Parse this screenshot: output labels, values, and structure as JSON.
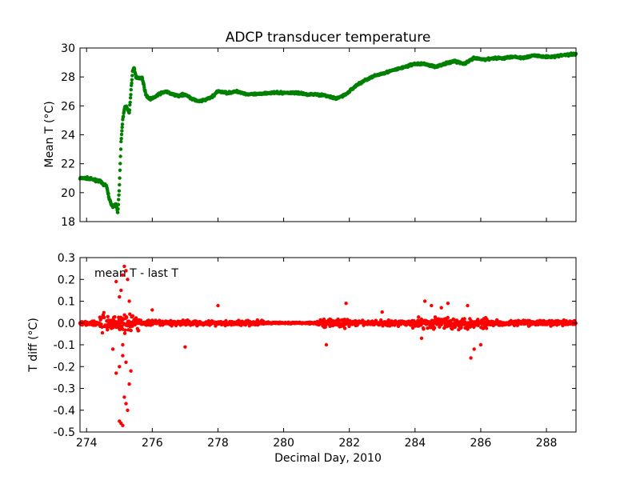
{
  "chart_data": [
    {
      "type": "scatter",
      "title": "ADCP transducer temperature",
      "xlabel": "",
      "ylabel": "Mean T (°C)",
      "xlim": [
        273.8,
        288.9
      ],
      "ylim": [
        18,
        30
      ],
      "xticks": [
        274,
        276,
        278,
        280,
        282,
        284,
        286,
        288
      ],
      "yticks": [
        18,
        20,
        22,
        24,
        26,
        28,
        30
      ],
      "grid": false,
      "legend": "none",
      "series": [
        {
          "color": "#008000",
          "x": [
            273.8,
            274.0,
            274.2,
            274.4,
            274.5,
            274.6,
            274.7,
            274.8,
            274.9,
            274.95,
            275.0,
            275.05,
            275.1,
            275.15,
            275.2,
            275.3,
            275.4,
            275.45,
            275.5,
            275.7,
            275.8,
            275.9,
            276.0,
            276.2,
            276.4,
            276.6,
            276.8,
            277.0,
            277.2,
            277.4,
            277.6,
            277.8,
            278.0,
            278.3,
            278.6,
            278.9,
            279.2,
            279.5,
            279.8,
            280.1,
            280.4,
            280.7,
            281.0,
            281.3,
            281.6,
            281.9,
            282.2,
            282.5,
            282.8,
            283.1,
            283.4,
            283.7,
            284.0,
            284.3,
            284.6,
            284.9,
            285.2,
            285.5,
            285.8,
            286.1,
            286.4,
            286.7,
            287.0,
            287.3,
            287.6,
            287.9,
            288.2,
            288.5,
            288.9
          ],
          "y": [
            21.0,
            21.0,
            20.9,
            20.8,
            20.6,
            20.5,
            19.5,
            19.0,
            19.2,
            18.6,
            20.5,
            23.5,
            25.0,
            25.8,
            26.0,
            25.5,
            28.4,
            28.6,
            28.0,
            27.9,
            26.8,
            26.5,
            26.5,
            26.8,
            27.0,
            26.8,
            26.7,
            26.8,
            26.5,
            26.3,
            26.4,
            26.6,
            27.0,
            26.9,
            27.0,
            26.8,
            26.8,
            26.9,
            26.9,
            26.9,
            26.9,
            26.8,
            26.8,
            26.7,
            26.5,
            26.8,
            27.4,
            27.8,
            28.1,
            28.3,
            28.5,
            28.7,
            28.9,
            28.9,
            28.7,
            28.9,
            29.1,
            28.9,
            29.3,
            29.2,
            29.3,
            29.3,
            29.4,
            29.3,
            29.5,
            29.4,
            29.4,
            29.5,
            29.6
          ]
        }
      ]
    },
    {
      "type": "scatter",
      "title": "",
      "annotation": "mean T - last T",
      "xlabel": "Decimal Day, 2010",
      "ylabel": "T diff (°C)",
      "xlim": [
        273.8,
        288.9
      ],
      "ylim": [
        -0.5,
        0.3
      ],
      "xticks": [
        274,
        276,
        278,
        280,
        282,
        284,
        286,
        288
      ],
      "yticks": [
        -0.5,
        -0.4,
        -0.3,
        -0.2,
        -0.1,
        0.0,
        0.1,
        0.2,
        0.3
      ],
      "grid": false,
      "legend": "none",
      "series": [
        {
          "color": "#ff0000",
          "outliers_x": [
            274.9,
            275.0,
            275.05,
            275.1,
            275.15,
            275.2,
            275.25,
            275.3,
            275.0,
            275.05,
            275.1,
            275.15,
            275.2,
            275.25,
            275.3,
            275.35,
            274.9,
            275.0,
            275.1,
            275.2,
            274.8,
            275.1,
            276.0,
            277.0,
            278.0,
            281.3,
            281.9,
            284.3,
            284.5,
            284.8,
            285.0,
            285.7,
            285.8,
            286.0,
            285.6,
            284.2,
            283.0
          ],
          "outliers_y": [
            0.19,
            0.12,
            0.15,
            0.22,
            0.26,
            0.24,
            0.2,
            0.1,
            -0.45,
            -0.46,
            -0.47,
            -0.34,
            -0.37,
            -0.4,
            -0.28,
            -0.22,
            -0.23,
            -0.2,
            -0.15,
            -0.18,
            -0.12,
            -0.1,
            0.06,
            -0.11,
            0.08,
            -0.1,
            0.09,
            0.1,
            0.08,
            0.07,
            0.09,
            -0.16,
            -0.12,
            -0.1,
            0.08,
            -0.07,
            0.05
          ]
        }
      ]
    }
  ]
}
